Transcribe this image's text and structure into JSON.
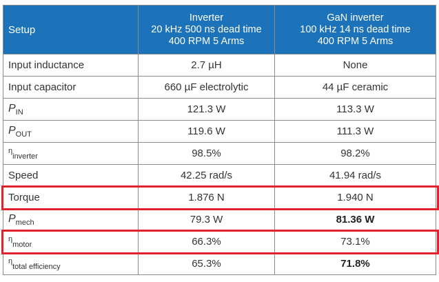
{
  "header": {
    "setup": "Setup",
    "col1": [
      "Inverter",
      "20 kHz 500 ns dead time",
      "400 RPM 5 Arms"
    ],
    "col2": [
      "GaN inverter",
      "100 kHz 14 ns dead time",
      "400 RPM 5 Arms"
    ]
  },
  "rows": [
    {
      "symbol": "",
      "sub": "",
      "label": "Input inductance",
      "v1": "2.7 µH",
      "v2": "None"
    },
    {
      "symbol": "",
      "sub": "",
      "label": "Input capacitor",
      "v1": "660 µF electrolytic",
      "v2": "44 µF ceramic"
    },
    {
      "symbol": "P",
      "sub": "IN",
      "v1": "121.3 W",
      "v2": "113.3 W"
    },
    {
      "symbol": "P",
      "sub": "OUT",
      "v1": "119.6 W",
      "v2": "111.3 W"
    },
    {
      "symbol": "η",
      "sub": "inverter",
      "v1": "98.5%",
      "v2": "98.2%"
    },
    {
      "label": "Speed",
      "v1": "42.25 rad/s",
      "v2": "41.94 rad/s"
    },
    {
      "label": "Torque",
      "v1": "1.876 N",
      "v2": "1.940 N",
      "highlighted": true
    },
    {
      "symbol": "P",
      "sub": "mech",
      "v1": "79.3 W",
      "v2": "81.36 W",
      "v2_bold": true
    },
    {
      "symbol": "η",
      "sub": "motor",
      "v1": "66.3%",
      "v2": "73.1%",
      "highlighted": true
    },
    {
      "symbol": "η",
      "sub": "total efficiency",
      "v1": "65.3%",
      "v2": "71.8%",
      "v2_bold": true
    }
  ],
  "colors": {
    "header_bg": "#1c73b9",
    "highlight": "#e0222c"
  }
}
